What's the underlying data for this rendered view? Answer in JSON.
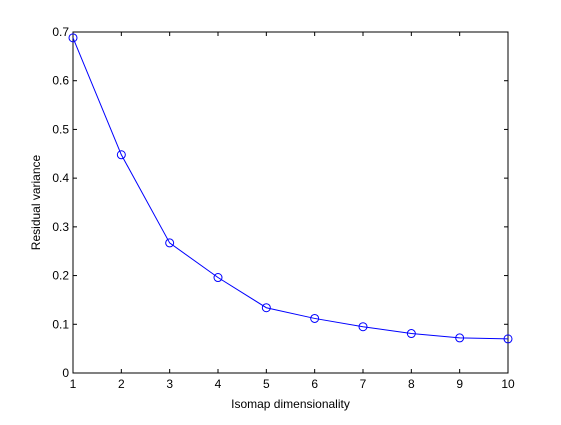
{
  "chart_data": {
    "type": "line",
    "xlabel": "Isomap dimensionality",
    "ylabel": "Residual variance",
    "xlim": [
      1,
      10
    ],
    "ylim": [
      0,
      0.7
    ],
    "x_ticks": [
      1,
      2,
      3,
      4,
      5,
      6,
      7,
      8,
      9,
      10
    ],
    "y_ticks": [
      0,
      0.1,
      0.2,
      0.3,
      0.4,
      0.5,
      0.6,
      0.7
    ],
    "grid": false,
    "series": [
      {
        "x": [
          1,
          2,
          3,
          4,
          5,
          6,
          7,
          8,
          9,
          10
        ],
        "values": [
          0.688,
          0.448,
          0.267,
          0.196,
          0.134,
          0.112,
          0.095,
          0.081,
          0.072,
          0.07
        ],
        "color": "#0000ff",
        "marker": "circle"
      }
    ]
  }
}
